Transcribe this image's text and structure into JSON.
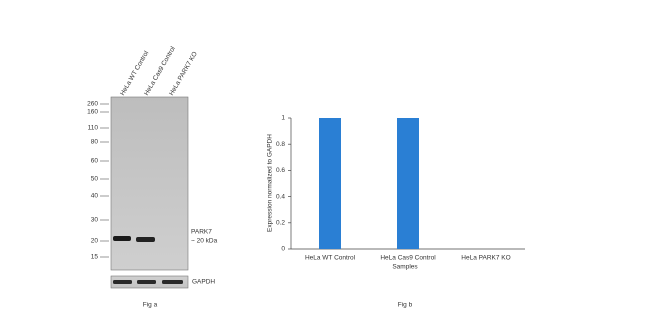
{
  "blot": {
    "lane_labels": [
      "HeLa WT Control",
      "HeLa Cas9 Control",
      "HeLa PARK7 KO"
    ],
    "markers": [
      260,
      160,
      110,
      80,
      60,
      50,
      40,
      30,
      20,
      15
    ],
    "band_label": "PARK7",
    "band_size": "~ 20 kDa",
    "loading_label": "GAPDH",
    "caption": "Fig a"
  },
  "chart_data": {
    "type": "bar",
    "categories": [
      "HeLa WT Control",
      "HeLa Cas9 Control",
      "HeLa PARK7 KO"
    ],
    "values": [
      1,
      1,
      0
    ],
    "color": "#2a7fd4",
    "ylim": [
      0,
      1
    ],
    "yticks": [
      0,
      0.2,
      0.4,
      0.6,
      0.8,
      1
    ],
    "ylabel": "Expression normalized to GAPDH",
    "xlabel": "Samples",
    "caption": "Fig b"
  }
}
